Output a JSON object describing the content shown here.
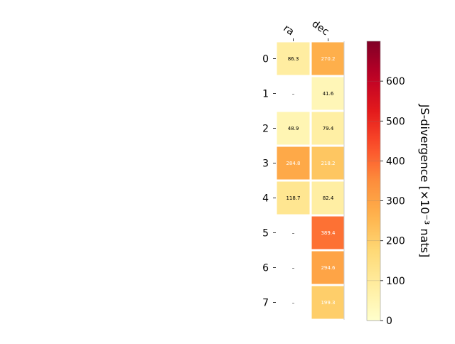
{
  "chart_data": {
    "type": "heatmap",
    "columns": [
      "ra",
      "dec"
    ],
    "rows": [
      "0",
      "1",
      "2",
      "3",
      "4",
      "5",
      "6",
      "7"
    ],
    "values": [
      [
        86.3,
        270.2
      ],
      [
        null,
        41.6
      ],
      [
        48.9,
        79.4
      ],
      [
        284.8,
        218.2
      ],
      [
        118.7,
        82.4
      ],
      [
        null,
        389.4
      ],
      [
        null,
        294.6
      ],
      [
        null,
        199.3
      ]
    ],
    "cell_labels": [
      [
        "86.3",
        "270.2"
      ],
      [
        "–",
        "41.6"
      ],
      [
        "48.9",
        "79.4"
      ],
      [
        "284.8",
        "218.2"
      ],
      [
        "118.7",
        "82.4"
      ],
      [
        "–",
        "389.4"
      ],
      [
        "–",
        "294.6"
      ],
      [
        "–",
        "199.3"
      ]
    ],
    "colorbar": {
      "label": "JS-divergence [×10⁻³ nats]",
      "range": [
        0,
        700
      ],
      "ticks": [
        "0",
        "100",
        "200",
        "300",
        "400",
        "500",
        "600"
      ],
      "colormap": "YlOrRd"
    }
  }
}
